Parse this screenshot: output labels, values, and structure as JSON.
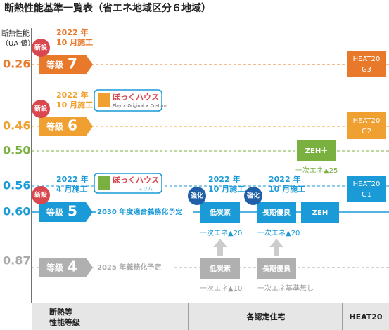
{
  "title": "断熱性能基準一覧表（省エネ地域区分６地域）",
  "axis_label": [
    "断熱性能",
    "（UA 値）"
  ],
  "ua_values": [
    "0.26",
    "0.46",
    "0.50",
    "0.56",
    "0.60",
    "0.87"
  ],
  "grades": [
    {
      "label": "等級",
      "number": "7"
    },
    {
      "label": "等級",
      "number": "6"
    },
    {
      "label": "等級",
      "number": "5"
    },
    {
      "label": "等級",
      "number": "4"
    }
  ],
  "new_badges": [
    "新設",
    "新設",
    "新設"
  ],
  "notes": [
    [
      "2022 年",
      "10 月施工"
    ],
    [
      "2022 年",
      "10 月施工"
    ],
    [
      "2022 年",
      "4 月施工"
    ],
    [
      "2022 年",
      "10 月施工"
    ],
    [
      "2022 年",
      "10 月施工"
    ]
  ],
  "logos": [
    {
      "name": "ぽっくハウス",
      "sub": "Play × Original × Custom"
    },
    {
      "name": "ぽっくハウス",
      "sub": "スリム"
    }
  ],
  "schedules": [
    "2030 年度適合義務化予定",
    "2025 年義務化予定"
  ],
  "heat20": [
    [
      "HEAT20",
      "G3"
    ],
    [
      "HEAT20",
      "G2"
    ],
    [
      "HEAT20",
      "G1"
    ]
  ],
  "zeh_plus": {
    "label": "ZEH＋",
    "note": "一次エネ▲25"
  },
  "enhanced_badges": [
    "強化",
    "強化"
  ],
  "grade5_boxes": [
    {
      "label": "低炭素",
      "note": "一次エネ▲20"
    },
    {
      "label": "長期優良",
      "note": "一次エネ▲20"
    },
    {
      "label": "ZEH"
    }
  ],
  "grade4_boxes": [
    {
      "label": "低炭素",
      "note": "一次エネ▲10"
    },
    {
      "label": "長期優良",
      "note": "一次エネ基準無し"
    }
  ],
  "footer": {
    "grade": [
      "断熱等",
      "性能等級"
    ],
    "certified": "各認定住宅",
    "heat20": "HEAT20"
  }
}
